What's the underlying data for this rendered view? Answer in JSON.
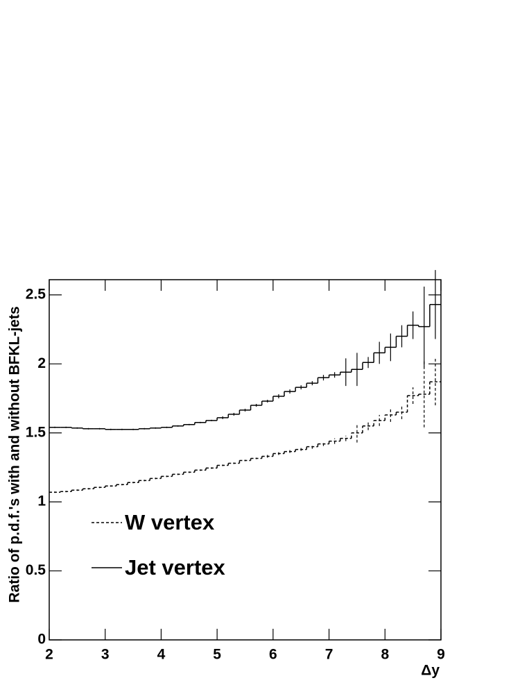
{
  "chart_data": {
    "type": "histogram",
    "x_label": "Δy",
    "y_label": "Ratio of p.d.f.'s with and without BFKL-jets",
    "bins": [
      2,
      2.2,
      2.4,
      2.6,
      2.8,
      3,
      3.2,
      3.4,
      3.6,
      3.8,
      4,
      4.2,
      4.4,
      4.6,
      4.8,
      5,
      5.2,
      5.4,
      5.6,
      5.8,
      6,
      6.2,
      6.4,
      6.6,
      6.8,
      7,
      7.2,
      7.4,
      7.6,
      7.8,
      8,
      8.2,
      8.4,
      8.6,
      8.8,
      9
    ],
    "series": [
      {
        "name": "W vertex",
        "color": "#000000",
        "dash": true,
        "values": [
          1.07,
          1.075,
          1.085,
          1.095,
          1.105,
          1.115,
          1.125,
          1.14,
          1.155,
          1.17,
          1.185,
          1.2,
          1.215,
          1.23,
          1.245,
          1.265,
          1.28,
          1.3,
          1.315,
          1.33,
          1.35,
          1.365,
          1.38,
          1.4,
          1.42,
          1.44,
          1.46,
          1.5,
          1.55,
          1.59,
          1.63,
          1.65,
          1.77,
          1.78,
          1.87
        ],
        "errors": [
          0.005,
          0.005,
          0.005,
          0.005,
          0.005,
          0.005,
          0.005,
          0.005,
          0.005,
          0.005,
          0.005,
          0.005,
          0.005,
          0.005,
          0.005,
          0.005,
          0.005,
          0.005,
          0.005,
          0.01,
          0.01,
          0.01,
          0.01,
          0.015,
          0.015,
          0.02,
          0.02,
          0.07,
          0.03,
          0.04,
          0.05,
          0.05,
          0.06,
          0.24,
          0.17
        ]
      },
      {
        "name": "Jet vertex",
        "color": "#000000",
        "dash": false,
        "values": [
          1.54,
          1.54,
          1.535,
          1.53,
          1.53,
          1.525,
          1.525,
          1.525,
          1.53,
          1.535,
          1.54,
          1.55,
          1.56,
          1.575,
          1.59,
          1.61,
          1.635,
          1.665,
          1.7,
          1.73,
          1.765,
          1.8,
          1.83,
          1.86,
          1.9,
          1.92,
          1.94,
          1.96,
          2.01,
          2.08,
          2.12,
          2.2,
          2.28,
          2.27,
          2.43
        ],
        "errors": [
          0.005,
          0.005,
          0.005,
          0.005,
          0.005,
          0.005,
          0.005,
          0.005,
          0.005,
          0.005,
          0.005,
          0.005,
          0.005,
          0.005,
          0.005,
          0.01,
          0.01,
          0.01,
          0.01,
          0.01,
          0.015,
          0.015,
          0.015,
          0.015,
          0.02,
          0.02,
          0.1,
          0.12,
          0.04,
          0.08,
          0.1,
          0.08,
          0.1,
          0.29,
          0.25
        ]
      }
    ],
    "xlim": [
      2,
      9
    ],
    "ylim": [
      0,
      2.61
    ],
    "xticks": [
      2,
      3,
      4,
      5,
      6,
      7,
      8,
      9
    ],
    "yticks": [
      0,
      0.5,
      1,
      1.5,
      2,
      2.5
    ],
    "legend": "lower left"
  }
}
